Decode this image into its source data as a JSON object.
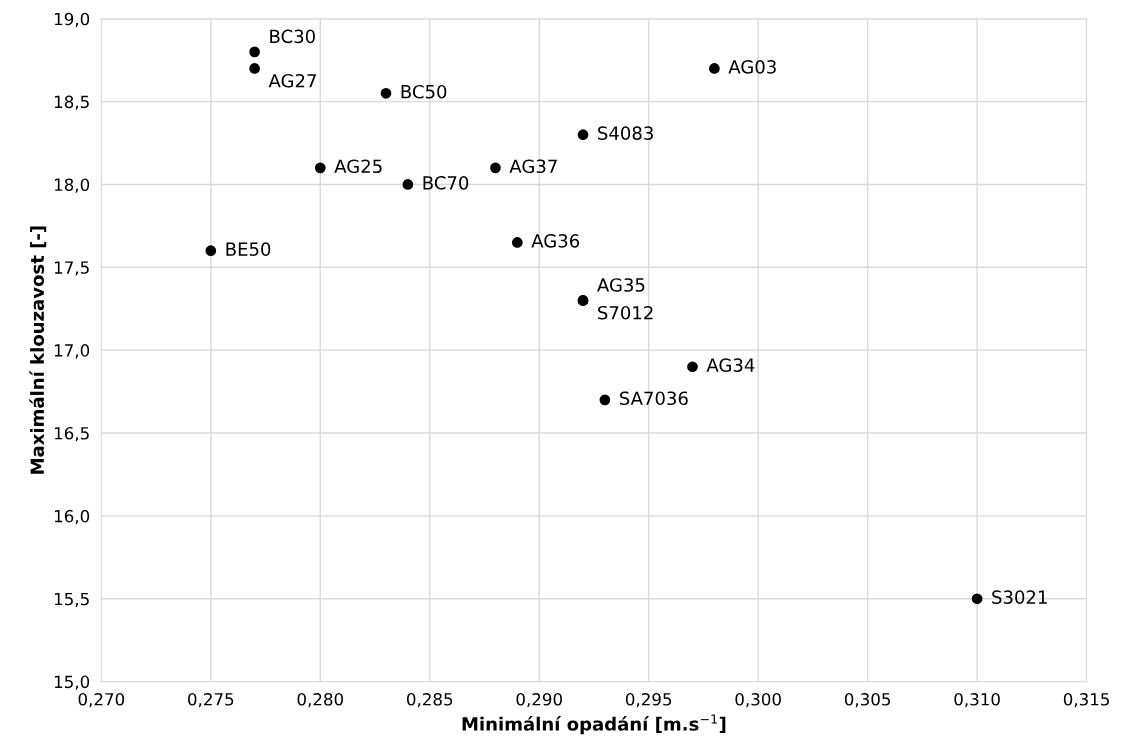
{
  "chart_data": {
    "type": "scatter",
    "xlabel": "Minimální opadání [m.s$^{−1}$]",
    "ylabel": "Maximální klouzavost [-]",
    "x": [
      0.277,
      0.277,
      0.283,
      0.298,
      0.292,
      0.28,
      0.288,
      0.284,
      0.275,
      0.289,
      0.292,
      0.292,
      0.297,
      0.293,
      0.31
    ],
    "series": [
      {
        "color": "#000000",
        "values": [
          18.8,
          18.7,
          18.55,
          18.7,
          18.3,
          18.1,
          18.1,
          18.0,
          17.6,
          17.65,
          17.3,
          17.3,
          16.9,
          16.7,
          15.5
        ]
      }
    ],
    "annotations": [
      {
        "text": "BC30",
        "x": 0.277,
        "y": 18.8
      },
      {
        "text": "AG27",
        "x": 0.277,
        "y": 18.7
      },
      {
        "text": "BC50",
        "x": 0.283,
        "y": 18.55
      },
      {
        "text": "AG03",
        "x": 0.298,
        "y": 18.7
      },
      {
        "text": "S4083",
        "x": 0.292,
        "y": 18.3
      },
      {
        "text": "AG25",
        "x": 0.28,
        "y": 18.1
      },
      {
        "text": "AG37",
        "x": 0.288,
        "y": 18.1
      },
      {
        "text": "BC70",
        "x": 0.284,
        "y": 18.0
      },
      {
        "text": "BE50",
        "x": 0.275,
        "y": 17.6
      },
      {
        "text": "AG36",
        "x": 0.289,
        "y": 17.65
      },
      {
        "text": "AG35",
        "x": 0.292,
        "y": 17.3
      },
      {
        "text": "S7012",
        "x": 0.292,
        "y": 17.3
      },
      {
        "text": "AG34",
        "x": 0.297,
        "y": 16.9
      },
      {
        "text": "SA7036",
        "x": 0.293,
        "y": 16.7
      },
      {
        "text": "S3021",
        "x": 0.31,
        "y": 15.5
      }
    ],
    "xlim": [
      0.27,
      0.315
    ],
    "xticks": [
      {
        "value": 0.27,
        "label": "0,270"
      },
      {
        "value": 0.275,
        "label": "0,275"
      },
      {
        "value": 0.28,
        "label": "0,280"
      },
      {
        "value": 0.285,
        "label": "0,285"
      },
      {
        "value": 0.29,
        "label": "0,290"
      },
      {
        "value": 0.295,
        "label": "0,295"
      },
      {
        "value": 0.3,
        "label": "0,300"
      },
      {
        "value": 0.305,
        "label": "0,305"
      },
      {
        "value": 0.31,
        "label": "0,310"
      },
      {
        "value": 0.315,
        "label": "0,315"
      }
    ],
    "ylim": [
      15.0,
      19.0
    ],
    "yticks": [
      {
        "value": 15.0,
        "label": "15,0"
      },
      {
        "value": 15.5,
        "label": "15,5"
      },
      {
        "value": 16.0,
        "label": "16,0"
      },
      {
        "value": 16.5,
        "label": "16,5"
      },
      {
        "value": 17.0,
        "label": "17,0"
      },
      {
        "value": 17.5,
        "label": "17,5"
      },
      {
        "value": 18.0,
        "label": "18,0"
      },
      {
        "value": 18.5,
        "label": "18,5"
      },
      {
        "value": 19.0,
        "label": "19,0"
      }
    ],
    "grid": true,
    "marker": "circle"
  }
}
